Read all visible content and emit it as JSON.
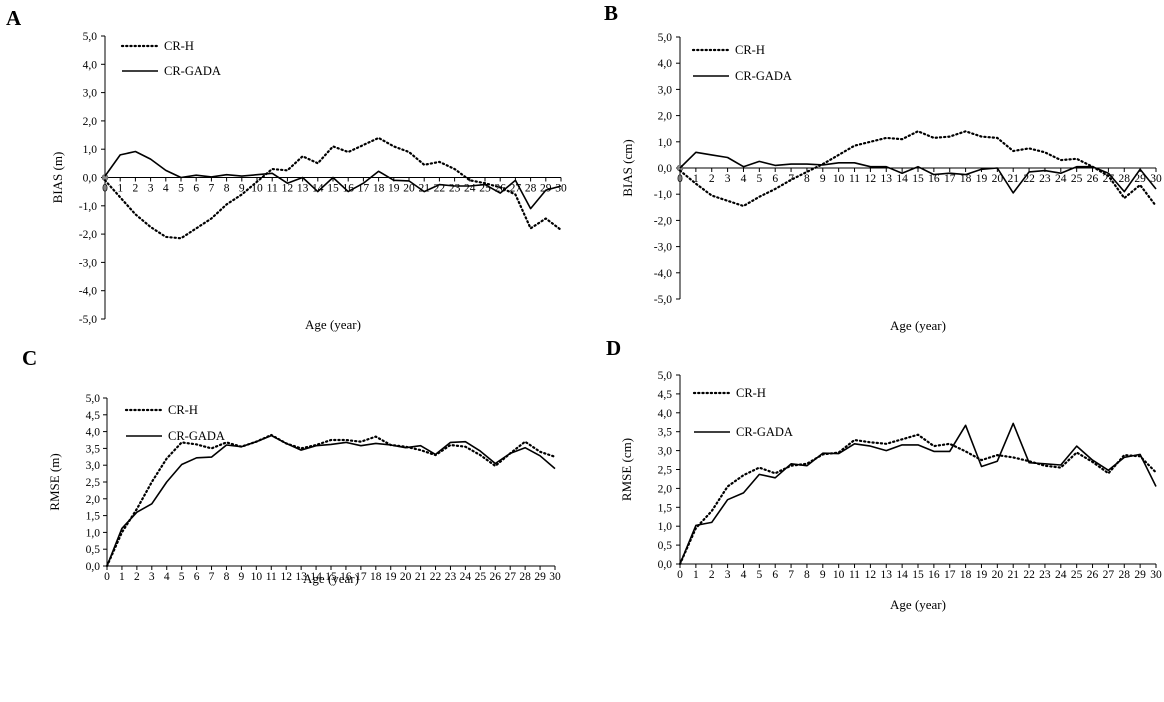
{
  "chart_data": [
    {
      "id": "A",
      "type": "line",
      "letter": "A",
      "xlabel": "Age (year)",
      "ylabel": "BIAS (m)",
      "ylim": [
        -5,
        5
      ],
      "ytick_step": 1,
      "ytick_labels": [
        "5,0",
        "4,0",
        "3,0",
        "2,0",
        "1,0",
        "0,0",
        "-1,0",
        "-2,0",
        "-3,0",
        "-4,0",
        "-5,0"
      ],
      "x_axis_at": 0,
      "x": [
        0,
        1,
        2,
        3,
        4,
        5,
        6,
        7,
        8,
        9,
        10,
        11,
        12,
        13,
        14,
        15,
        16,
        17,
        18,
        19,
        20,
        21,
        22,
        23,
        24,
        25,
        26,
        27,
        28,
        29,
        30
      ],
      "series": [
        {
          "name": "CR-H",
          "style": "dotted",
          "values": [
            -0.1,
            -0.7,
            -1.3,
            -1.75,
            -2.1,
            -2.15,
            -1.8,
            -1.45,
            -0.95,
            -0.6,
            -0.15,
            0.3,
            0.25,
            0.75,
            0.5,
            1.1,
            0.9,
            1.15,
            1.4,
            1.1,
            0.9,
            0.45,
            0.55,
            0.3,
            -0.1,
            -0.2,
            -0.35,
            -0.6,
            -1.8,
            -1.45,
            -1.85
          ]
        },
        {
          "name": "CR-GADA",
          "style": "solid",
          "values": [
            0.05,
            0.8,
            0.92,
            0.65,
            0.25,
            0.0,
            0.08,
            0.02,
            0.1,
            0.05,
            0.1,
            0.15,
            -0.2,
            0.0,
            -0.5,
            0.0,
            -0.5,
            -0.2,
            0.22,
            -0.1,
            -0.12,
            -0.5,
            -0.25,
            -0.3,
            -0.3,
            -0.25,
            -0.55,
            -0.1,
            -1.1,
            -0.45,
            -0.3
          ]
        }
      ]
    },
    {
      "id": "B",
      "type": "line",
      "letter": "B",
      "xlabel": "Age (year)",
      "ylabel": "BIAS (cm)",
      "ylim": [
        -5,
        5
      ],
      "ytick_step": 1,
      "ytick_labels": [
        "5,0",
        "4,0",
        "3,0",
        "2,0",
        "1,0",
        "0,0",
        "-1,0",
        "-2,0",
        "-3,0",
        "-4,0",
        "-5,0"
      ],
      "x_axis_at": 0,
      "x": [
        0,
        1,
        2,
        3,
        4,
        5,
        6,
        7,
        8,
        9,
        10,
        11,
        12,
        13,
        14,
        15,
        16,
        17,
        18,
        19,
        20,
        21,
        22,
        23,
        24,
        25,
        26,
        27,
        28,
        29,
        30
      ],
      "series": [
        {
          "name": "CR-H",
          "style": "dotted",
          "values": [
            -0.1,
            -0.6,
            -1.05,
            -1.25,
            -1.45,
            -1.1,
            -0.8,
            -0.45,
            -0.15,
            0.15,
            0.5,
            0.85,
            1.0,
            1.15,
            1.1,
            1.4,
            1.15,
            1.2,
            1.4,
            1.2,
            1.15,
            0.65,
            0.75,
            0.6,
            0.3,
            0.35,
            0.05,
            -0.3,
            -1.15,
            -0.65,
            -1.45
          ]
        },
        {
          "name": "CR-GADA",
          "style": "solid",
          "values": [
            0.0,
            0.6,
            0.5,
            0.4,
            0.05,
            0.25,
            0.1,
            0.15,
            0.15,
            0.12,
            0.2,
            0.2,
            0.05,
            0.05,
            -0.2,
            0.05,
            -0.25,
            -0.2,
            -0.25,
            -0.05,
            0.0,
            -0.95,
            -0.15,
            -0.1,
            -0.2,
            0.05,
            0.05,
            -0.2,
            -0.9,
            -0.05,
            -0.8
          ]
        }
      ]
    },
    {
      "id": "C",
      "type": "line",
      "letter": "C",
      "xlabel": "Age (year)",
      "ylabel": "RMSE (m)",
      "ylim": [
        0,
        5
      ],
      "ytick_step": 0.5,
      "ytick_labels": [
        "5,0",
        "4,5",
        "4,0",
        "3,5",
        "3,0",
        "2,5",
        "2,0",
        "1,5",
        "1,0",
        "0,5",
        "0,0"
      ],
      "x_axis_at": 0,
      "x": [
        0,
        1,
        2,
        3,
        4,
        5,
        6,
        7,
        8,
        9,
        10,
        11,
        12,
        13,
        14,
        15,
        16,
        17,
        18,
        19,
        20,
        21,
        22,
        23,
        24,
        25,
        26,
        27,
        28,
        29,
        30
      ],
      "series": [
        {
          "name": "CR-H",
          "style": "dotted",
          "values": [
            0.0,
            1.0,
            1.7,
            2.5,
            3.2,
            3.68,
            3.62,
            3.5,
            3.68,
            3.55,
            3.7,
            3.9,
            3.65,
            3.5,
            3.6,
            3.75,
            3.75,
            3.7,
            3.85,
            3.6,
            3.55,
            3.45,
            3.3,
            3.6,
            3.55,
            3.3,
            2.98,
            3.35,
            3.7,
            3.4,
            3.25
          ]
        },
        {
          "name": "CR-GADA",
          "style": "solid",
          "values": [
            0.0,
            1.12,
            1.6,
            1.85,
            2.5,
            3.02,
            3.22,
            3.24,
            3.6,
            3.55,
            3.7,
            3.88,
            3.65,
            3.45,
            3.58,
            3.62,
            3.68,
            3.58,
            3.65,
            3.6,
            3.52,
            3.58,
            3.32,
            3.68,
            3.7,
            3.42,
            3.05,
            3.35,
            3.52,
            3.28,
            2.9
          ]
        }
      ]
    },
    {
      "id": "D",
      "type": "line",
      "letter": "D",
      "xlabel": "Age (year)",
      "ylabel": "RMSE (cm)",
      "ylim": [
        0,
        5
      ],
      "ytick_step": 0.5,
      "ytick_labels": [
        "5,0",
        "4,5",
        "4,0",
        "3,5",
        "3,0",
        "2,5",
        "2,0",
        "1,5",
        "1,0",
        "0,5",
        "0,0"
      ],
      "x_axis_at": 0,
      "x": [
        0,
        1,
        2,
        3,
        4,
        5,
        6,
        7,
        8,
        9,
        10,
        11,
        12,
        13,
        14,
        15,
        16,
        17,
        18,
        19,
        20,
        21,
        22,
        23,
        24,
        25,
        26,
        27,
        28,
        29,
        30
      ],
      "series": [
        {
          "name": "CR-H",
          "style": "dotted",
          "values": [
            0.0,
            0.95,
            1.4,
            2.05,
            2.35,
            2.55,
            2.4,
            2.6,
            2.65,
            2.9,
            2.95,
            3.28,
            3.22,
            3.18,
            3.3,
            3.42,
            3.12,
            3.18,
            2.98,
            2.75,
            2.88,
            2.82,
            2.72,
            2.6,
            2.55,
            2.95,
            2.7,
            2.4,
            2.88,
            2.85,
            2.42
          ]
        },
        {
          "name": "CR-GADA",
          "style": "solid",
          "values": [
            0.0,
            1.02,
            1.1,
            1.7,
            1.88,
            2.37,
            2.28,
            2.65,
            2.6,
            2.93,
            2.92,
            3.18,
            3.12,
            3.0,
            3.15,
            3.15,
            2.98,
            2.98,
            3.67,
            2.58,
            2.72,
            3.72,
            2.68,
            2.65,
            2.62,
            3.12,
            2.75,
            2.48,
            2.82,
            2.9,
            2.05
          ]
        }
      ]
    }
  ]
}
